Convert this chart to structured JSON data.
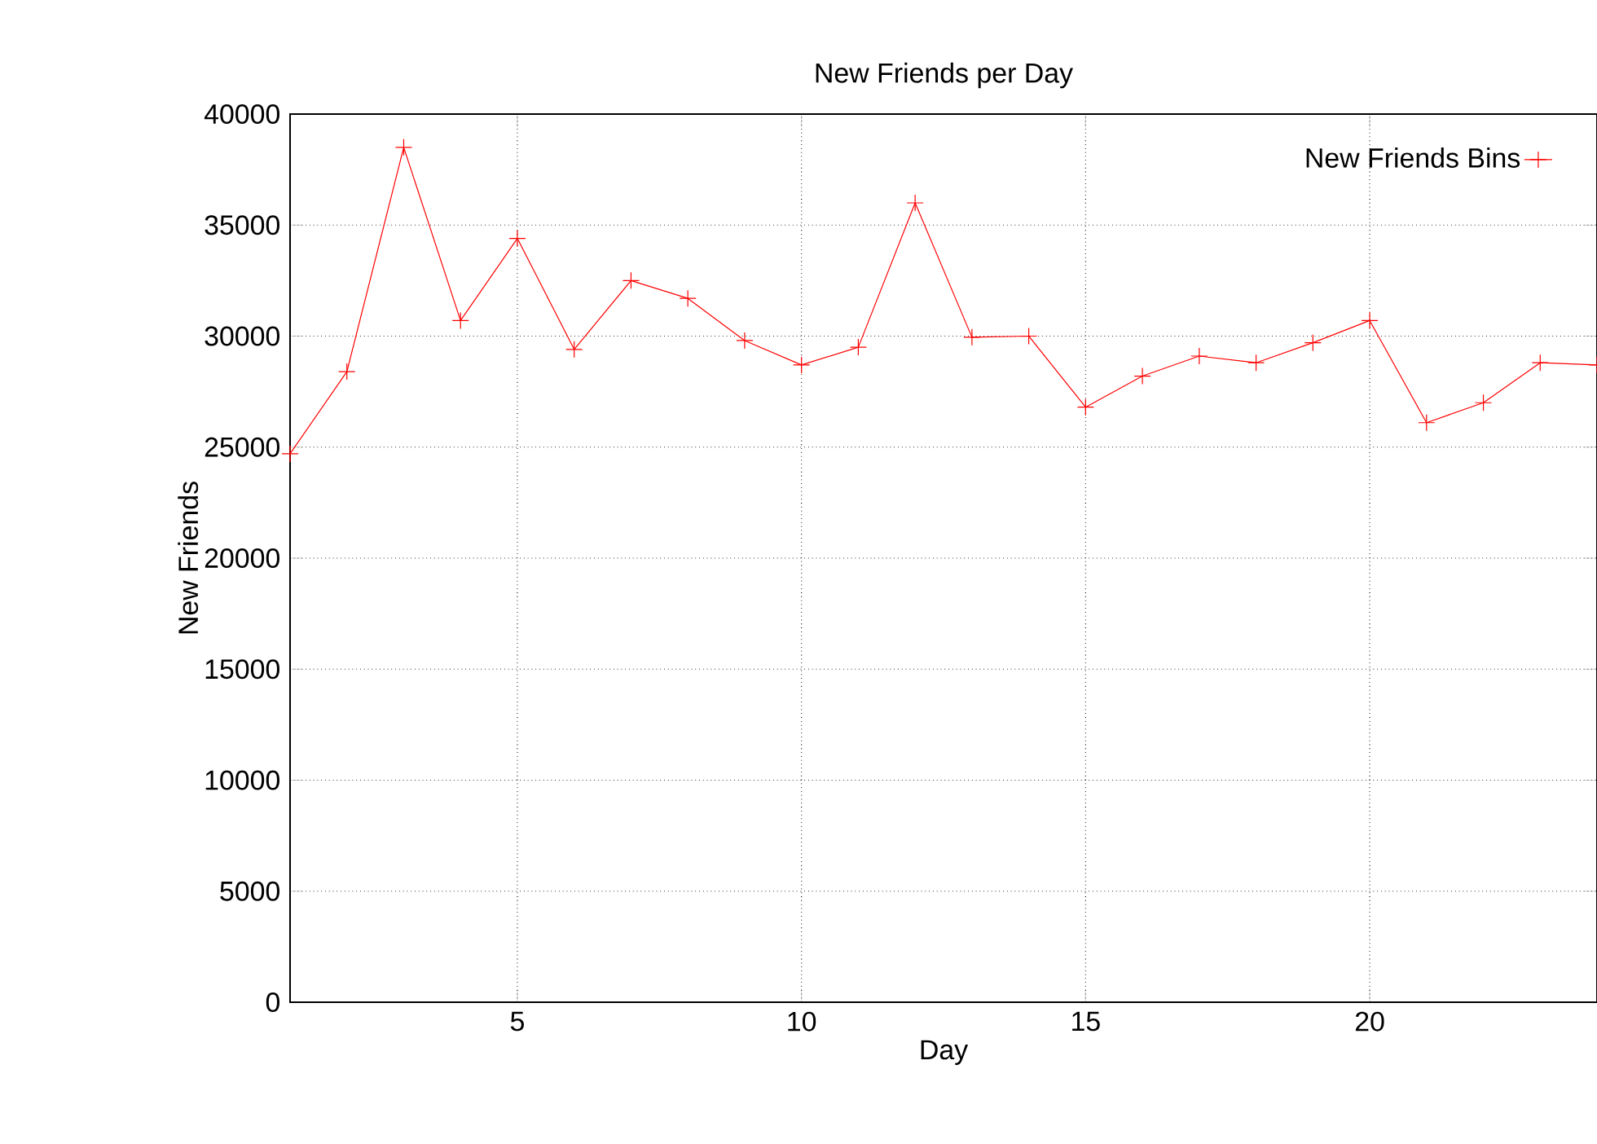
{
  "chart_data": {
    "type": "line",
    "title": "New Friends per Day",
    "xlabel": "Day",
    "ylabel": "New Friends",
    "x": [
      1,
      2,
      3,
      4,
      5,
      6,
      7,
      8,
      9,
      10,
      11,
      12,
      13,
      14,
      15,
      16,
      17,
      18,
      19,
      20,
      21,
      22,
      23,
      24
    ],
    "series": [
      {
        "name": "New Friends Bins",
        "color": "#ff0000",
        "values": [
          24700,
          28400,
          38500,
          30700,
          34400,
          29400,
          32500,
          31700,
          29800,
          28700,
          29500,
          36000,
          29950,
          30000,
          26800,
          28200,
          29100,
          28800,
          29700,
          30700,
          26100,
          27000,
          28800,
          28700
        ]
      }
    ],
    "xlim": [
      1,
      24
    ],
    "ylim": [
      0,
      40000
    ],
    "xticks": [
      5,
      10,
      15,
      20
    ],
    "yticks": [
      0,
      5000,
      10000,
      15000,
      20000,
      25000,
      30000,
      35000,
      40000
    ],
    "grid": true,
    "legend": "top right",
    "marker": "cross",
    "line_style": "solid"
  }
}
